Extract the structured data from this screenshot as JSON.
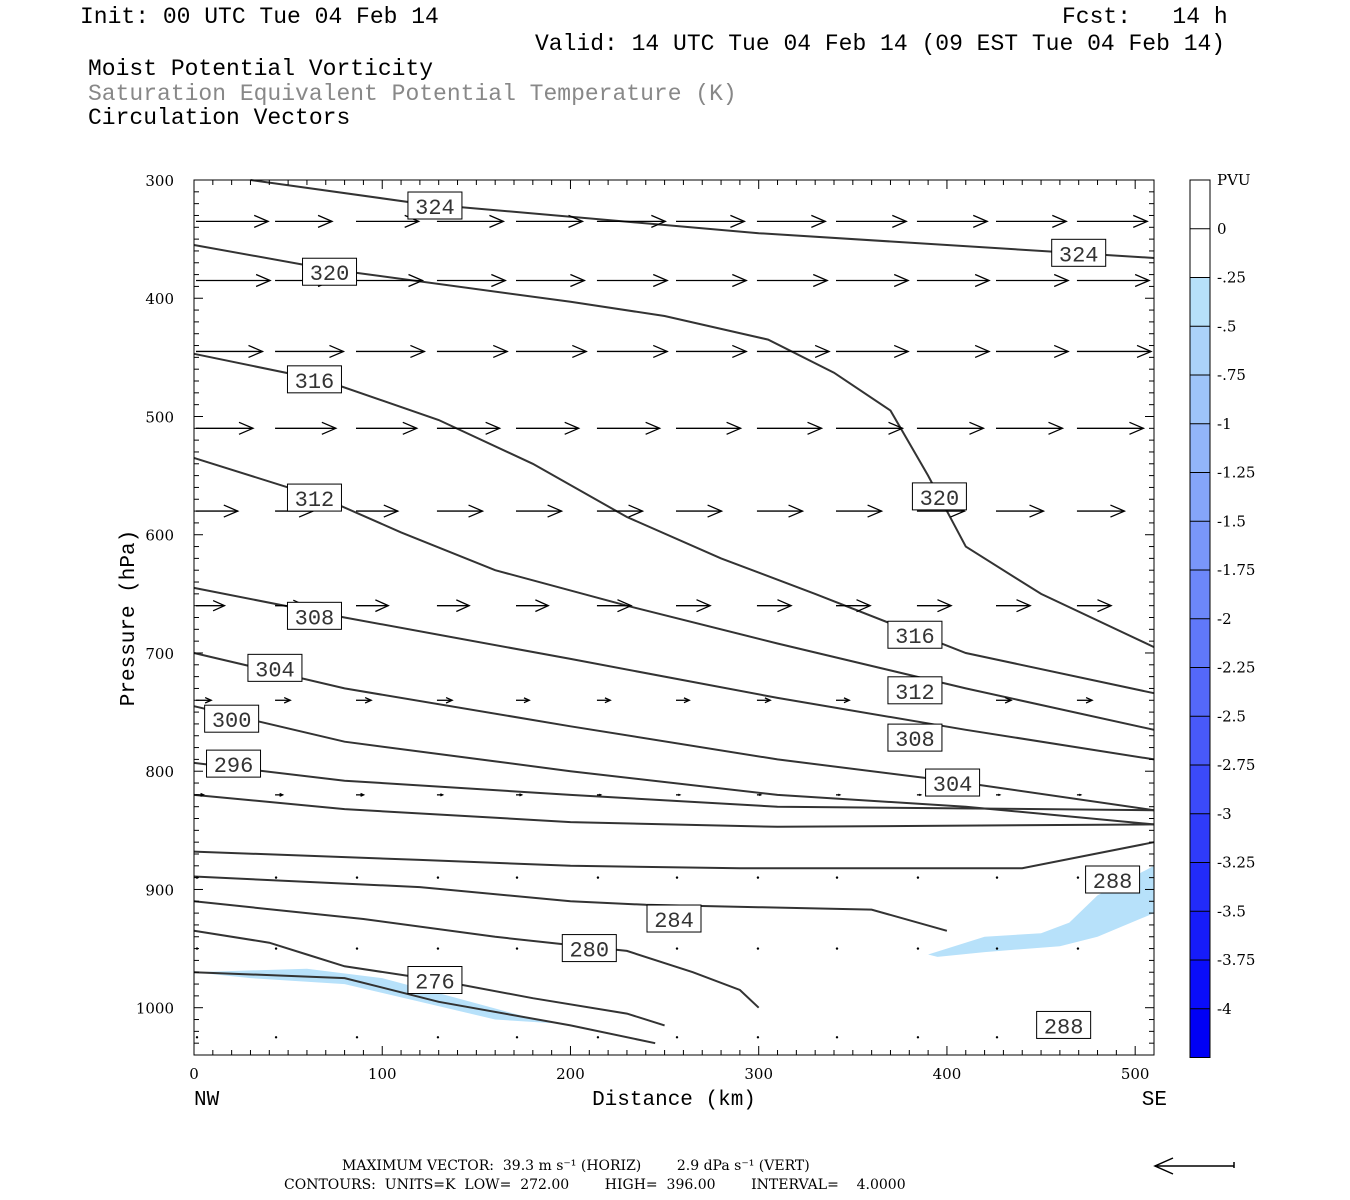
{
  "header": {
    "init": "Init: 00 UTC Tue 04 Feb 14",
    "fcst": "Fcst:   14 h",
    "valid": "Valid: 14 UTC Tue 04 Feb 14 (09 EST Tue 04 Feb 14)",
    "field1": "Moist Potential Vorticity",
    "field2": "Saturation Equivalent Potential Temperature (K)",
    "field3": "Circulation Vectors"
  },
  "footer": {
    "max_vector": "MAXIMUM VECTOR:  39.3 m s⁻¹ (HORIZ)        2.9 dPa s⁻¹ (VERT)",
    "contours": "CONTOURS:  UNITS=K  LOW=  272.00        HIGH=  396.00        INTERVAL=    4.0000"
  },
  "colors": {
    "contour": "#333333",
    "pv_fill": "#b7e1fa",
    "ref_arrow": "#000000"
  },
  "chart_data": {
    "type": "cross-section",
    "xlabel": "Distance (km)",
    "ylabel": "Pressure (hPa)",
    "xlim": [
      0,
      510
    ],
    "ylim": [
      300,
      1040
    ],
    "y_inverted": true,
    "x_ticks": [
      "0",
      "100",
      "200",
      "300",
      "400",
      "500"
    ],
    "y_ticks": [
      "300",
      "400",
      "500",
      "600",
      "700",
      "800",
      "900",
      "1000"
    ],
    "x_endpoints": {
      "left": "NW",
      "right": "SE"
    },
    "colorbar": {
      "title": "PVU",
      "ticks": [
        "0",
        "-.25",
        "-.5",
        "-.75",
        "-1",
        "-1.25",
        "-1.5",
        "-1.75",
        "-2",
        "-2.25",
        "-2.5",
        "-2.75",
        "-3",
        "-3.25",
        "-3.5",
        "-3.75",
        "-4"
      ],
      "colors": [
        "#ffffff",
        "#ffffff",
        "#b7e1fa",
        "#abd2fa",
        "#9ec4fa",
        "#92b5fa",
        "#85a5fa",
        "#7996fa",
        "#6c87fa",
        "#6078fa",
        "#5468fa",
        "#4859fa",
        "#3b4afa",
        "#2f3bfa",
        "#222bfa",
        "#161cfa",
        "#0a0dfa",
        "#0000f5"
      ]
    },
    "contours": [
      {
        "value": 324,
        "label": "324",
        "points": [
          [
            30,
            300
          ],
          [
            120,
            320
          ],
          [
            300,
            345
          ],
          [
            510,
            366
          ]
        ],
        "labels_at": [
          [
            128,
            322
          ],
          [
            470,
            362
          ]
        ]
      },
      {
        "value": 320,
        "label": "320",
        "points": [
          [
            0,
            355
          ],
          [
            70,
            375
          ],
          [
            200,
            403
          ],
          [
            250,
            415
          ],
          [
            305,
            435
          ],
          [
            340,
            463
          ],
          [
            370,
            495
          ],
          [
            390,
            550
          ],
          [
            410,
            610
          ],
          [
            450,
            650
          ],
          [
            510,
            695
          ]
        ],
        "labels_at": [
          [
            72,
            378
          ],
          [
            396,
            568
          ]
        ]
      },
      {
        "value": 316,
        "label": "316",
        "points": [
          [
            0,
            447
          ],
          [
            70,
            470
          ],
          [
            130,
            503
          ],
          [
            180,
            540
          ],
          [
            230,
            585
          ],
          [
            280,
            620
          ],
          [
            330,
            650
          ],
          [
            410,
            700
          ],
          [
            510,
            734
          ]
        ],
        "labels_at": [
          [
            64,
            469
          ],
          [
            383,
            685
          ]
        ]
      },
      {
        "value": 312,
        "label": "312",
        "points": [
          [
            0,
            535
          ],
          [
            70,
            570
          ],
          [
            110,
            598
          ],
          [
            160,
            630
          ],
          [
            230,
            660
          ],
          [
            310,
            692
          ],
          [
            410,
            730
          ],
          [
            510,
            765
          ]
        ],
        "labels_at": [
          [
            64,
            569
          ],
          [
            383,
            732
          ]
        ]
      },
      {
        "value": 308,
        "label": "308",
        "points": [
          [
            0,
            645
          ],
          [
            80,
            670
          ],
          [
            200,
            705
          ],
          [
            310,
            738
          ],
          [
            410,
            765
          ],
          [
            510,
            790
          ]
        ],
        "labels_at": [
          [
            64,
            669
          ],
          [
            383,
            772
          ]
        ]
      },
      {
        "value": 304,
        "label": "304",
        "points": [
          [
            0,
            700
          ],
          [
            80,
            730
          ],
          [
            200,
            762
          ],
          [
            310,
            790
          ],
          [
            410,
            810
          ],
          [
            510,
            833
          ]
        ],
        "labels_at": [
          [
            43,
            713
          ],
          [
            403,
            810
          ]
        ]
      },
      {
        "value": 300,
        "label": "300",
        "points": [
          [
            0,
            745
          ],
          [
            80,
            775
          ],
          [
            200,
            800
          ],
          [
            310,
            820
          ],
          [
            410,
            830
          ],
          [
            510,
            845
          ]
        ],
        "labels_at": [
          [
            20,
            756
          ]
        ]
      },
      {
        "value": 296,
        "label": "296",
        "points": [
          [
            0,
            793
          ],
          [
            80,
            808
          ],
          [
            200,
            820
          ],
          [
            310,
            830
          ],
          [
            510,
            833
          ]
        ],
        "labels_at": [
          [
            21,
            794
          ]
        ]
      },
      {
        "value": 292,
        "label": "",
        "points": [
          [
            0,
            820
          ],
          [
            80,
            832
          ],
          [
            200,
            843
          ],
          [
            310,
            847
          ],
          [
            510,
            845
          ]
        ],
        "labels_at": []
      },
      {
        "value": 288,
        "label": "288",
        "points": [
          [
            0,
            868
          ],
          [
            120,
            875
          ],
          [
            200,
            880
          ],
          [
            290,
            882
          ],
          [
            440,
            882
          ],
          [
            510,
            860
          ]
        ],
        "labels_at": [
          [
            488,
            892
          ],
          [
            462,
            1015
          ]
        ]
      },
      {
        "value": 284,
        "label": "284",
        "points": [
          [
            0,
            889
          ],
          [
            120,
            898
          ],
          [
            200,
            910
          ],
          [
            240,
            913
          ],
          [
            300,
            915
          ],
          [
            360,
            917
          ],
          [
            400,
            935
          ]
        ],
        "labels_at": [
          [
            255,
            925
          ]
        ]
      },
      {
        "value": 280,
        "label": "280",
        "points": [
          [
            0,
            910
          ],
          [
            90,
            925
          ],
          [
            160,
            940
          ],
          [
            200,
            947
          ],
          [
            230,
            952
          ],
          [
            265,
            970
          ],
          [
            290,
            985
          ],
          [
            300,
            1000
          ]
        ],
        "labels_at": [
          [
            210,
            950
          ]
        ]
      },
      {
        "value": 276,
        "label": "276",
        "points": [
          [
            0,
            935
          ],
          [
            40,
            945
          ],
          [
            60,
            955
          ],
          [
            80,
            965
          ],
          [
            130,
            977
          ],
          [
            180,
            992
          ],
          [
            230,
            1005
          ],
          [
            250,
            1015
          ]
        ],
        "labels_at": [
          [
            128,
            977
          ]
        ]
      },
      {
        "value": 272,
        "label": "",
        "points": [
          [
            0,
            970
          ],
          [
            80,
            975
          ],
          [
            130,
            995
          ],
          [
            200,
            1015
          ],
          [
            245,
            1030
          ]
        ],
        "labels_at": []
      }
    ],
    "pv_regions": [
      {
        "value": -0.25,
        "points": [
          [
            390,
            955
          ],
          [
            420,
            940
          ],
          [
            450,
            937
          ],
          [
            465,
            928
          ],
          [
            480,
            905
          ],
          [
            510,
            880
          ],
          [
            510,
            920
          ],
          [
            480,
            940
          ],
          [
            460,
            948
          ],
          [
            420,
            953
          ],
          [
            395,
            957
          ]
        ]
      },
      {
        "value": -0.25,
        "points": [
          [
            0,
            970
          ],
          [
            60,
            967
          ],
          [
            100,
            975
          ],
          [
            140,
            992
          ],
          [
            170,
            1005
          ],
          [
            190,
            1013
          ],
          [
            160,
            1010
          ],
          [
            120,
            995
          ],
          [
            80,
            980
          ],
          [
            30,
            975
          ]
        ]
      }
    ],
    "vectors": [
      {
        "p": 335,
        "x": [
          0,
          42,
          85,
          128,
          170,
          213,
          255,
          298,
          340,
          383,
          425,
          468
        ],
        "u": [
          38,
          30,
          33,
          35,
          35,
          36,
          36,
          36,
          37,
          37,
          37,
          37
        ]
      },
      {
        "p": 385,
        "x": [
          0,
          42,
          85,
          128,
          170,
          213,
          255,
          298,
          340,
          383,
          425,
          468
        ],
        "u": [
          39,
          30,
          35,
          36,
          36,
          37,
          37,
          37,
          38,
          38,
          38,
          38
        ]
      },
      {
        "p": 445,
        "x": [
          0,
          42,
          85,
          128,
          170,
          213,
          255,
          298,
          340,
          383,
          425,
          468
        ],
        "u": [
          35,
          36,
          36,
          37,
          37,
          37,
          37,
          38,
          38,
          38,
          38,
          39
        ]
      },
      {
        "p": 510,
        "x": [
          0,
          42,
          85,
          128,
          170,
          213,
          255,
          298,
          340,
          383,
          425,
          468
        ],
        "u": [
          30,
          32,
          32,
          33,
          33,
          33,
          34,
          34,
          35,
          35,
          35,
          35
        ]
      },
      {
        "p": 580,
        "x": [
          0,
          42,
          85,
          128,
          170,
          213,
          255,
          298,
          340,
          383,
          425,
          468
        ],
        "u": [
          22,
          20,
          22,
          24,
          24,
          24,
          24,
          24,
          24,
          25,
          25,
          25
        ]
      },
      {
        "p": 660,
        "x": [
          0,
          42,
          85,
          128,
          170,
          213,
          255,
          298,
          340,
          383,
          425,
          468
        ],
        "u": [
          15,
          16,
          17,
          17,
          17,
          18,
          18,
          18,
          18,
          18,
          18,
          18
        ]
      },
      {
        "p": 740,
        "x": [
          0,
          42,
          85,
          128,
          170,
          213,
          255,
          298,
          340,
          383,
          425,
          468
        ],
        "u": [
          8,
          8,
          8,
          8,
          7,
          7,
          7,
          7,
          7,
          7,
          8,
          8
        ]
      },
      {
        "p": 820,
        "x": [
          0,
          42,
          85,
          128,
          170,
          213,
          255,
          298,
          340,
          383,
          425,
          468
        ],
        "u": [
          4,
          4,
          4,
          3,
          3,
          2,
          2,
          2,
          2,
          2,
          2,
          2
        ]
      },
      {
        "p": 890,
        "x": [
          0,
          42,
          85,
          128,
          170,
          213,
          255,
          298,
          340,
          383,
          425,
          468
        ],
        "u": [
          1,
          1,
          1,
          1,
          1,
          1,
          1,
          1,
          1,
          1,
          1,
          1
        ]
      },
      {
        "p": 950,
        "x": [
          0,
          42,
          85,
          128,
          170,
          213,
          255,
          298,
          340,
          383,
          425,
          468
        ],
        "u": [
          0,
          0,
          0,
          0,
          0,
          0,
          0,
          0,
          0,
          0,
          0,
          0
        ]
      },
      {
        "p": 1025,
        "x": [
          0,
          42,
          85,
          128,
          170,
          213,
          255,
          298,
          340,
          383,
          425,
          468
        ],
        "u": [
          0,
          0,
          0,
          0,
          0,
          0,
          0,
          0,
          0,
          0,
          0,
          0
        ]
      }
    ],
    "reference_vector": {
      "direction": "left",
      "horiz": 39.3,
      "vert": 2.9
    }
  }
}
